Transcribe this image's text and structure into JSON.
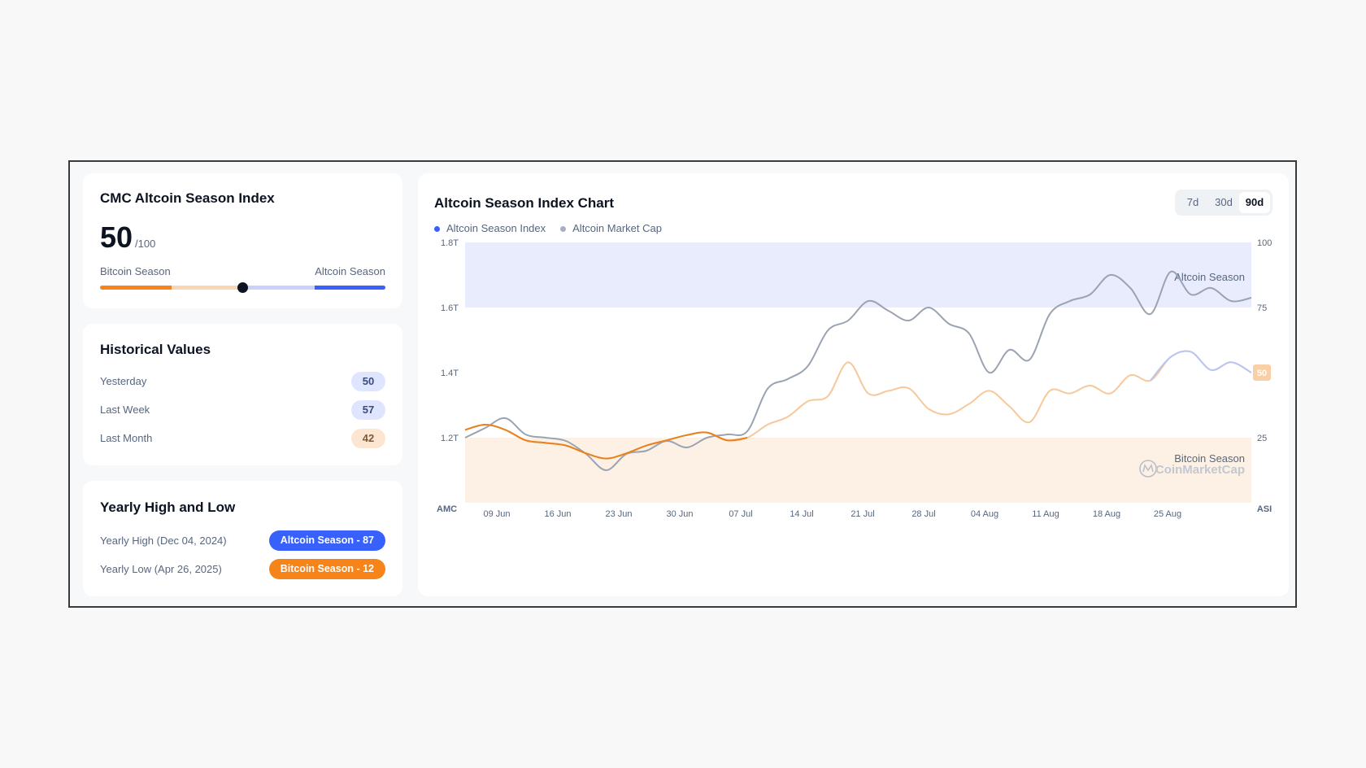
{
  "index_card": {
    "title": "CMC Altcoin Season Index",
    "value": "50",
    "denominator": "/100",
    "left_label": "Bitcoin Season",
    "right_label": "Altcoin Season",
    "level": 0.5
  },
  "historical": {
    "title": "Historical Values",
    "rows": [
      {
        "label": "Yesterday",
        "value": "50",
        "tone": "blue"
      },
      {
        "label": "Last Week",
        "value": "57",
        "tone": "blue"
      },
      {
        "label": "Last Month",
        "value": "42",
        "tone": "orange"
      }
    ]
  },
  "yearly": {
    "title": "Yearly High and Low",
    "high_label": "Yearly High (Dec 04, 2024)",
    "high_badge": "Altcoin Season - 87",
    "low_label": "Yearly Low (Apr 26, 2025)",
    "low_badge": "Bitcoin Season - 12"
  },
  "chart_card": {
    "title": "Altcoin Season Index Chart",
    "ranges": [
      "7d",
      "30d",
      "90d"
    ],
    "active_range": "90d",
    "legend": [
      "Altcoin Season Index",
      "Altcoin Market Cap"
    ],
    "band_top_label": "Altcoin Season",
    "band_bottom_label": "Bitcoin Season",
    "watermark": "CoinMarketCap",
    "left_axis_title": "AMC",
    "right_axis_title": "ASI",
    "current_value_label": "50"
  },
  "colors": {
    "blue": "#3861fb",
    "orange": "#f68419",
    "gray_line": "#9aa3b2",
    "blue_band": "#e9ecfd",
    "orange_band": "#fdf1e5"
  },
  "chart_data": {
    "type": "line",
    "x_ticks": [
      "09 Jun",
      "16 Jun",
      "23 Jun",
      "30 Jun",
      "07 Jul",
      "14 Jul",
      "21 Jul",
      "28 Jul",
      "04 Aug",
      "11 Aug",
      "18 Aug",
      "25 Aug"
    ],
    "y_left_ticks": [
      "1.8T",
      "1.6T",
      "1.4T",
      "1.2T"
    ],
    "y_right_ticks": [
      "100",
      "75",
      "25"
    ],
    "ylim_left": [
      1.0,
      1.8
    ],
    "ylim_right": [
      0,
      100
    ],
    "zones": {
      "altcoin_season_min": 75,
      "bitcoin_season_max": 25
    },
    "series": [
      {
        "name": "Altcoin Market Cap",
        "axis": "left",
        "unit": "T",
        "values": [
          1.2,
          1.23,
          1.26,
          1.21,
          1.2,
          1.19,
          1.15,
          1.1,
          1.15,
          1.16,
          1.19,
          1.17,
          1.2,
          1.21,
          1.22,
          1.35,
          1.38,
          1.42,
          1.53,
          1.56,
          1.62,
          1.59,
          1.56,
          1.6,
          1.55,
          1.52,
          1.4,
          1.47,
          1.44,
          1.58,
          1.62,
          1.64,
          1.7,
          1.66,
          1.58,
          1.71,
          1.64,
          1.66,
          1.62,
          1.63
        ]
      },
      {
        "name": "Altcoin Season Index",
        "axis": "right",
        "values": [
          28,
          30,
          28,
          24,
          23,
          22,
          19,
          17,
          19,
          22,
          24,
          26,
          27,
          24,
          25,
          30,
          33,
          39,
          41,
          54,
          42,
          43,
          44,
          36,
          34,
          38,
          43,
          37,
          31,
          43,
          42,
          45,
          42,
          49,
          47,
          56,
          58,
          51,
          54,
          50
        ]
      }
    ]
  }
}
